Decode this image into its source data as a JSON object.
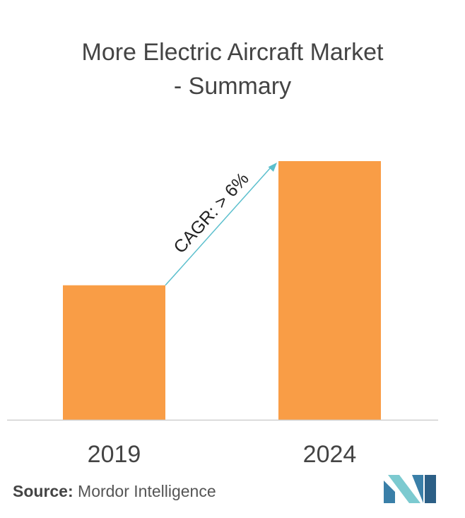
{
  "chart_data": {
    "type": "bar",
    "title_lines": [
      "More Electric Aircraft Market",
      "- Summary"
    ],
    "categories": [
      "2019",
      "2024"
    ],
    "values": [
      52,
      100
    ],
    "annotation": "CAGR: > 6%",
    "colors": {
      "bar": "#f99d46",
      "arrow": "#5bbfcd",
      "axis": "#cfcfcf"
    },
    "grid": false,
    "legend": "none"
  },
  "footer": {
    "source_label": "Source:",
    "source_value": "Mordor Intelligence"
  },
  "logo": {
    "icon": "mordor-intelligence-logo",
    "colors": [
      "#3a7fa8",
      "#7ccad0",
      "#2c5f86"
    ]
  }
}
